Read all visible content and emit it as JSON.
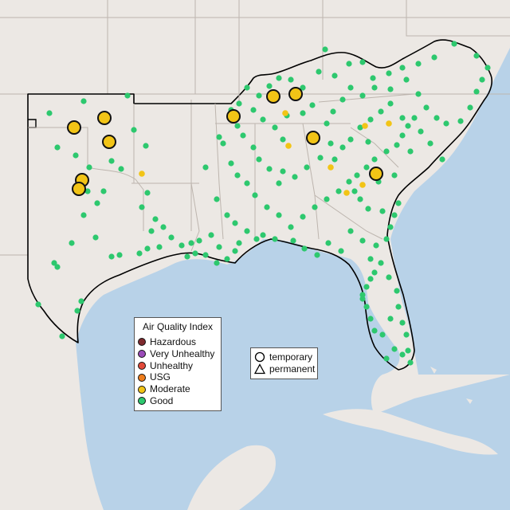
{
  "legend": {
    "title": "Air Quality Index",
    "categories": [
      {
        "label": "Hazardous",
        "color": "#7e2a2e"
      },
      {
        "label": "Very Unhealthy",
        "color": "#9a4bb8"
      },
      {
        "label": "Unhealthy",
        "color": "#e24a3a"
      },
      {
        "label": "USG",
        "color": "#ee7d1c"
      },
      {
        "label": "Moderate",
        "color": "#f2c416"
      },
      {
        "label": "Good",
        "color": "#2dc86e"
      }
    ]
  },
  "shape_legend": {
    "items": [
      {
        "label": "temporary",
        "icon": "circle-outline-icon"
      },
      {
        "label": "permanent",
        "icon": "triangle-outline-icon"
      }
    ]
  },
  "colors": {
    "land": "#ece8e4",
    "water": "#b8d2e8",
    "highlighted_states_border": "#000000",
    "state_lines": "#bdb5ae"
  }
}
